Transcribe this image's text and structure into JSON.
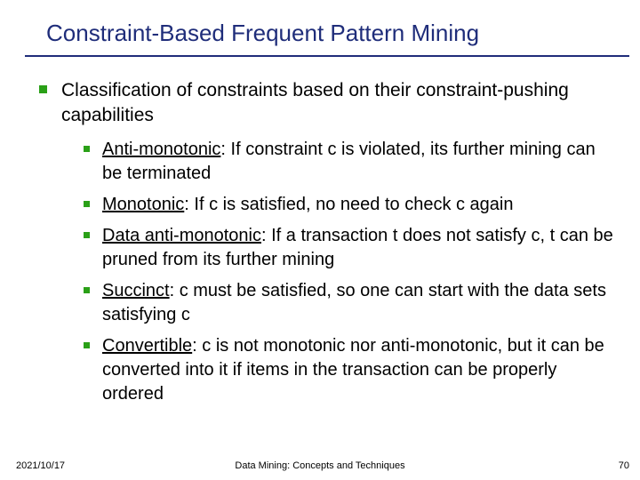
{
  "title": "Constraint-Based Frequent Pattern Mining",
  "title_color": "#1f2d7a",
  "rule_color": "#1f2d7a",
  "bullet_color": "#2aa017",
  "lvl1_text": "Classification of constraints based on their constraint-pushing capabilities",
  "items": [
    {
      "term": "Anti-monotonic",
      "rest": ": If constraint c is violated, its further mining can be terminated"
    },
    {
      "term": "Monotonic",
      "rest": ": If c is satisfied, no need to check c again"
    },
    {
      "term": "Data anti-monotonic",
      "rest": ": If a transaction t does not satisfy c, t can be pruned from its further mining"
    },
    {
      "term": "Succinct",
      "rest": ": c must be satisfied, so one can start with the data sets satisfying c"
    },
    {
      "term": "Convertible",
      "rest": ": c is not monotonic nor anti-monotonic, but it can be converted into it if items in the transaction can be properly ordered"
    }
  ],
  "footer": {
    "date": "2021/10/17",
    "center": "Data Mining: Concepts and Techniques",
    "page": "70"
  },
  "fontsize": {
    "title": 26,
    "lvl1": 21,
    "lvl2": 20,
    "footer": 11
  }
}
